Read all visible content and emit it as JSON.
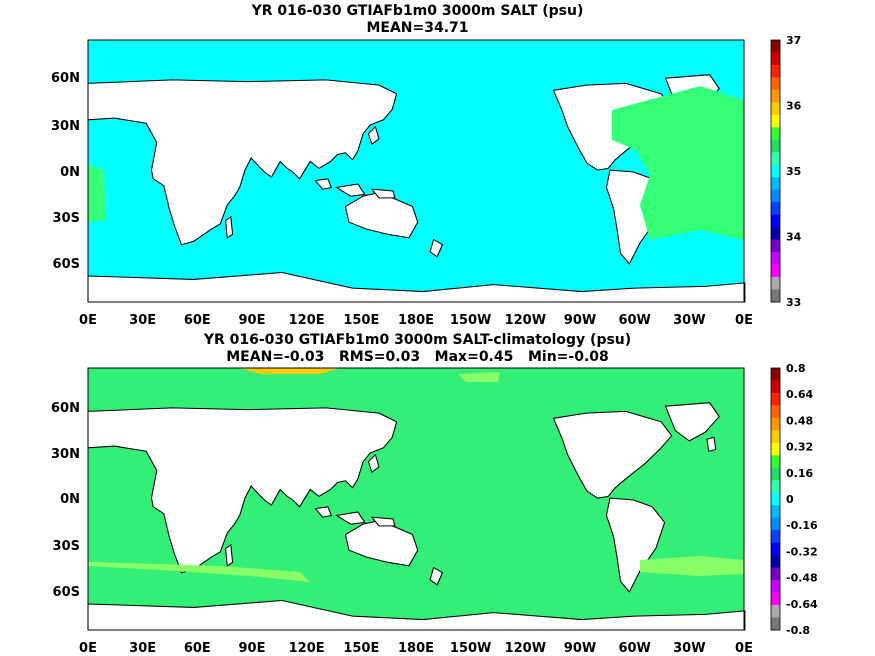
{
  "panels": [
    {
      "title_line1": "YR 016-030 GTIAFb1m0 3000m SALT (psu)",
      "title_line2": "MEAN=34.71",
      "ocean_color": "#00ffff",
      "patch_color": "#33ff77",
      "colorbar_labels": [
        "37",
        "36",
        "35",
        "34",
        "33"
      ],
      "colorbar_colors": [
        "#8b0000",
        "#cc0000",
        "#ff2200",
        "#ff6600",
        "#ff9900",
        "#ffcc00",
        "#ffff00",
        "#33ff33",
        "#22dd66",
        "#33ffaa",
        "#00ffff",
        "#00bbff",
        "#0088ff",
        "#0044ff",
        "#0000ff",
        "#0000aa",
        "#7700cc",
        "#cc00ff",
        "#ff00ff",
        "#aaaaaa",
        "#777777"
      ]
    },
    {
      "title_line1": "YR 016-030 GTIAFb1m0 3000m SALT-climatology (psu)",
      "title_line2": "MEAN=-0.03   RMS=0.03   Max=0.45   Min=-0.08",
      "ocean_color": "#33ee77",
      "patch_color": "#88ff66",
      "colorbar_labels": [
        "0.8",
        "0.64",
        "0.48",
        "0.32",
        "0.16",
        "0",
        "-0.16",
        "-0.32",
        "-0.48",
        "-0.64",
        "-0.8"
      ],
      "colorbar_colors": [
        "#8b0000",
        "#cc0000",
        "#ff2200",
        "#ff6600",
        "#ff9900",
        "#ffcc00",
        "#ffff00",
        "#33ff33",
        "#22dd66",
        "#33ffaa",
        "#00ffff",
        "#00bbff",
        "#0088ff",
        "#0044ff",
        "#0000ff",
        "#0000aa",
        "#7700cc",
        "#cc00ff",
        "#ff00ff",
        "#aaaaaa",
        "#777777"
      ]
    }
  ],
  "chart_data": [
    {
      "type": "heatmap",
      "title": "YR 016-030 GTIAFb1m0 3000m SALT (psu)",
      "subtitle": "MEAN=34.71",
      "x_ticks": [
        "0E",
        "30E",
        "60E",
        "90E",
        "120E",
        "150E",
        "180E",
        "150W",
        "120W",
        "90W",
        "60W",
        "30W",
        "0E"
      ],
      "y_ticks": [
        "60N",
        "30N",
        "0N",
        "30S",
        "60S"
      ],
      "colorbar": {
        "min": 33,
        "max": 37,
        "ticks": [
          37,
          36,
          35,
          34,
          33
        ]
      },
      "mean": 34.71
    },
    {
      "type": "heatmap",
      "title": "YR 016-030 GTIAFb1m0 3000m SALT-climatology (psu)",
      "subtitle": "MEAN=-0.03   RMS=0.03   Max=0.45   Min=-0.08",
      "x_ticks": [
        "0E",
        "30E",
        "60E",
        "90E",
        "120E",
        "150E",
        "180E",
        "150W",
        "120W",
        "90W",
        "60W",
        "30W",
        "0E"
      ],
      "y_ticks": [
        "60N",
        "30N",
        "0N",
        "30S",
        "60S"
      ],
      "colorbar": {
        "min": -0.8,
        "max": 0.8,
        "ticks": [
          0.8,
          0.64,
          0.48,
          0.32,
          0.16,
          0,
          -0.16,
          -0.32,
          -0.48,
          -0.64,
          -0.8
        ]
      },
      "mean": -0.03,
      "rms": 0.03,
      "max": 0.45,
      "min": -0.08
    }
  ]
}
